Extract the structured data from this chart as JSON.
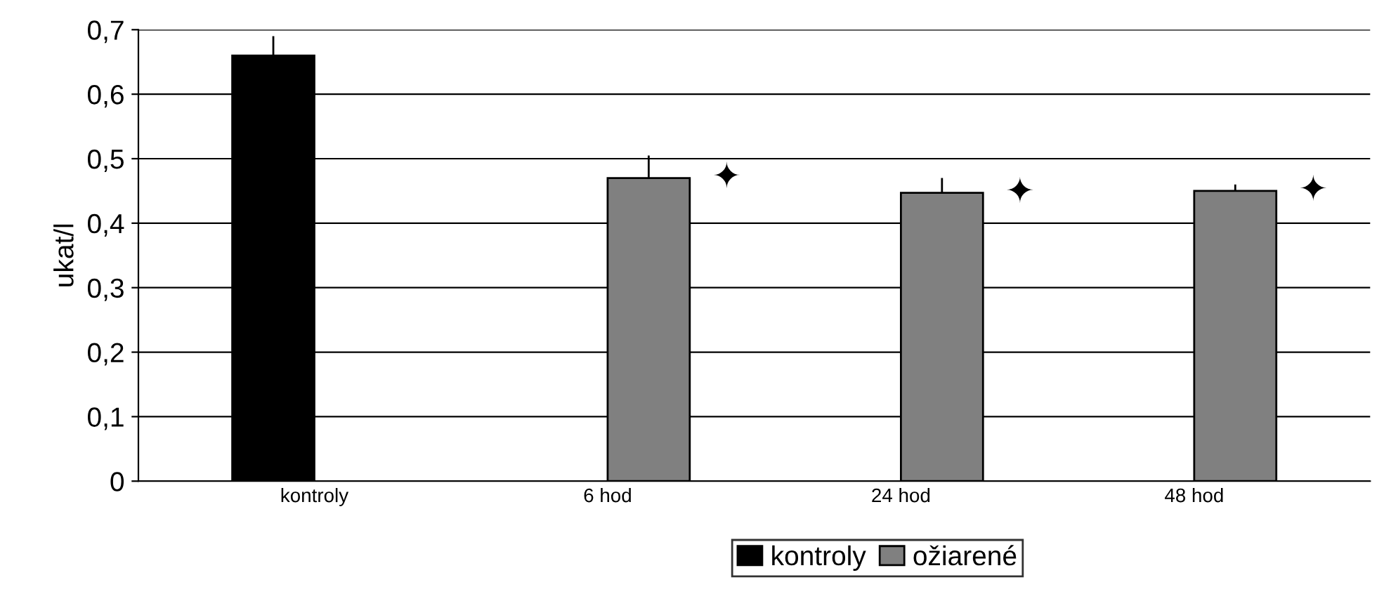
{
  "chart_data": {
    "type": "bar",
    "ylabel": "ukat/l",
    "categories": [
      "kontroly",
      "6 hod",
      "24 hod",
      "48 hod"
    ],
    "series": [
      {
        "name": "kontroly",
        "color": "#000000",
        "values": [
          0.66,
          null,
          null,
          null
        ],
        "errors": [
          [
            0.66,
            0.69
          ],
          null,
          null,
          null
        ]
      },
      {
        "name": "ožiarené",
        "color": "#808080",
        "values": [
          null,
          0.47,
          0.447,
          0.45
        ],
        "errors": [
          null,
          [
            0.47,
            0.505
          ],
          [
            0.447,
            0.47
          ],
          [
            0.45,
            0.46
          ]
        ]
      }
    ],
    "annotations": [
      "✦",
      "✦",
      "✦"
    ],
    "ylim": [
      0,
      0.7
    ],
    "yticks": [
      0,
      {
        "value": 0.1,
        "label": "0,1"
      },
      {
        "value": 0.2,
        "label": "0,2"
      },
      {
        "value": 0.3,
        "label": "0,3"
      },
      {
        "value": 0.4,
        "label": "0,4"
      },
      {
        "value": 0.5,
        "label": "0,5"
      },
      {
        "value": 0.6,
        "label": "0,6"
      },
      {
        "value": 0.7,
        "label": "0,7"
      }
    ],
    "grid": "y",
    "legend": "bottom"
  }
}
